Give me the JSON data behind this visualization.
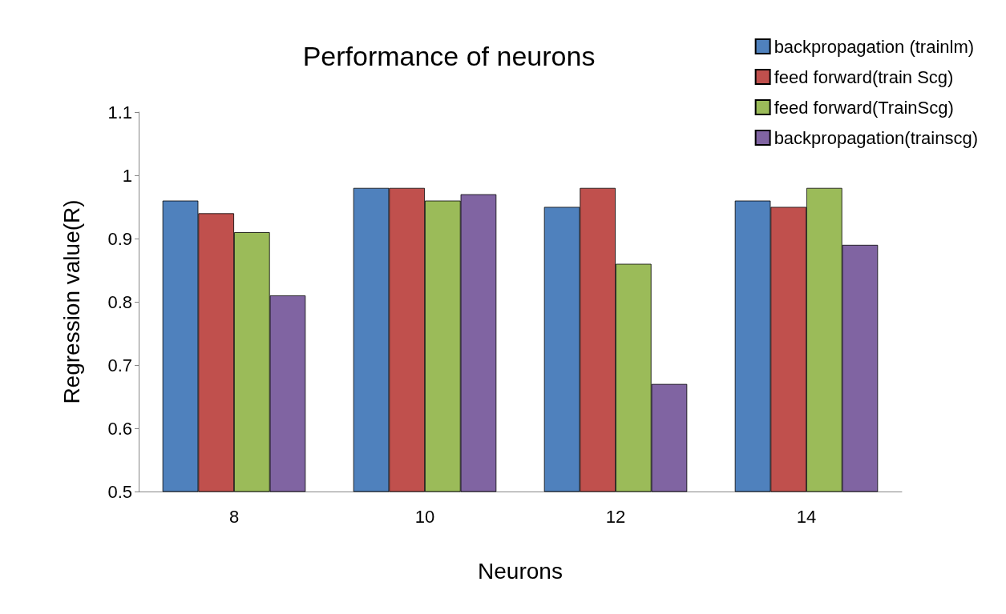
{
  "chart_data": {
    "type": "bar",
    "title": "Performance of neurons",
    "xlabel": "Neurons",
    "ylabel": "Regression value(R)",
    "categories": [
      "8",
      "10",
      "12",
      "14"
    ],
    "series": [
      {
        "name": "backpropagation (trainlm)",
        "color": "#4f81bd",
        "values": [
          0.96,
          0.98,
          0.95,
          0.96
        ]
      },
      {
        "name": "feed forward(train Scg)",
        "color": "#c0504d",
        "values": [
          0.94,
          0.98,
          0.98,
          0.95
        ]
      },
      {
        "name": "feed forward(TrainScg)",
        "color": "#9bbb59",
        "values": [
          0.91,
          0.96,
          0.86,
          0.98
        ]
      },
      {
        "name": "backpropagation(trainscg)",
        "color": "#8064a2",
        "values": [
          0.81,
          0.97,
          0.67,
          0.89
        ]
      }
    ],
    "ylim": [
      0.5,
      1.1
    ],
    "yticks": [
      0.5,
      0.6,
      0.7,
      0.8,
      0.9,
      1,
      1.1
    ],
    "grid": false,
    "legend": "top right"
  }
}
